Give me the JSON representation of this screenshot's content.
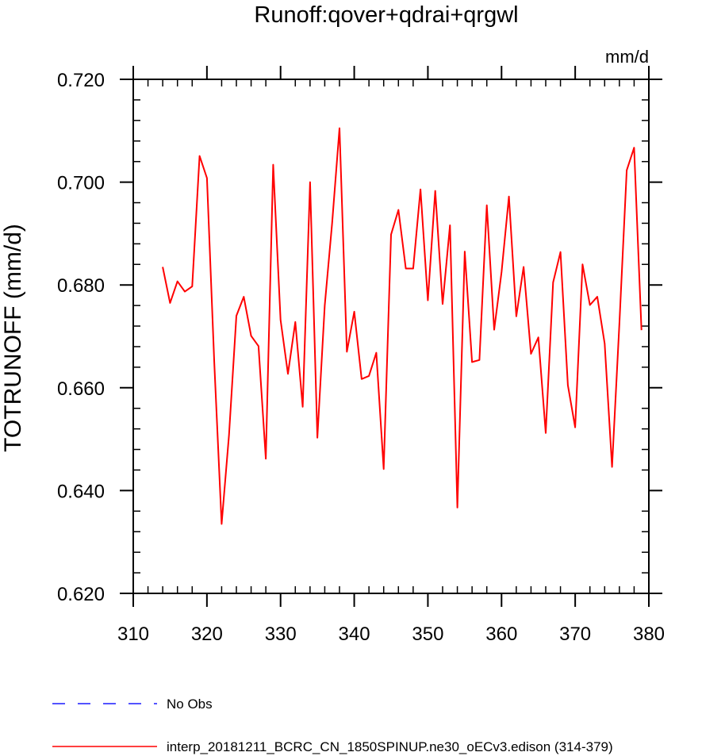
{
  "chart_data": {
    "type": "line",
    "title": "Runoff:qover+qdrai+qrgwl",
    "units_label": "mm/d",
    "ylabel": "TOTRUNOFF  (mm/d)",
    "xlabel": "",
    "xlim": [
      310,
      380
    ],
    "ylim": [
      0.62,
      0.72
    ],
    "x_ticks": [
      310,
      320,
      330,
      340,
      350,
      360,
      370,
      380
    ],
    "y_ticks": [
      0.62,
      0.64,
      0.66,
      0.68,
      0.7,
      0.72
    ],
    "x_tick_labels": [
      "310",
      "320",
      "330",
      "340",
      "350",
      "360",
      "370",
      "380"
    ],
    "y_tick_labels": [
      "0.620",
      "0.640",
      "0.660",
      "0.680",
      "0.700",
      "0.720"
    ],
    "grid": false,
    "legend_placement": "bottom-left",
    "legend": [
      {
        "label": "No Obs",
        "color": "#1a1aff",
        "style": "dashed"
      },
      {
        "label": "interp_20181211_BCRC_CN_1850SPINUP.ne30_oECv3.edison (314-379)",
        "color": "#ff0000",
        "style": "solid"
      }
    ],
    "series": [
      {
        "name": "interp_20181211_BCRC_CN_1850SPINUP.ne30_oECv3.edison (314-379)",
        "color": "#ff0000",
        "x": [
          314,
          315,
          316,
          317,
          318,
          319,
          320,
          321,
          322,
          323,
          324,
          325,
          326,
          327,
          328,
          329,
          330,
          331,
          332,
          333,
          334,
          335,
          336,
          337,
          338,
          339,
          340,
          341,
          342,
          343,
          344,
          345,
          346,
          347,
          348,
          349,
          350,
          351,
          352,
          353,
          354,
          355,
          356,
          357,
          358,
          359,
          360,
          361,
          362,
          363,
          364,
          365,
          366,
          367,
          368,
          369,
          370,
          371,
          372,
          373,
          374,
          375,
          376,
          377,
          378,
          379
        ],
        "values": [
          0.6835,
          0.6765,
          0.6807,
          0.6787,
          0.6797,
          0.7051,
          0.7008,
          0.665,
          0.6335,
          0.6508,
          0.674,
          0.6777,
          0.6701,
          0.6681,
          0.6462,
          0.7034,
          0.6732,
          0.6627,
          0.6728,
          0.6563,
          0.7,
          0.6503,
          0.676,
          0.692,
          0.7105,
          0.667,
          0.6748,
          0.6617,
          0.6623,
          0.6668,
          0.6442,
          0.6898,
          0.6946,
          0.6832,
          0.6832,
          0.6986,
          0.677,
          0.6983,
          0.6763,
          0.6916,
          0.6367,
          0.6865,
          0.665,
          0.6654,
          0.6955,
          0.6713,
          0.6825,
          0.6972,
          0.6739,
          0.6835,
          0.6666,
          0.6698,
          0.6512,
          0.6805,
          0.6864,
          0.6605,
          0.6523,
          0.684,
          0.6761,
          0.6777,
          0.6686,
          0.6446,
          0.6726,
          0.7023,
          0.7067,
          0.6712
        ]
      }
    ]
  }
}
